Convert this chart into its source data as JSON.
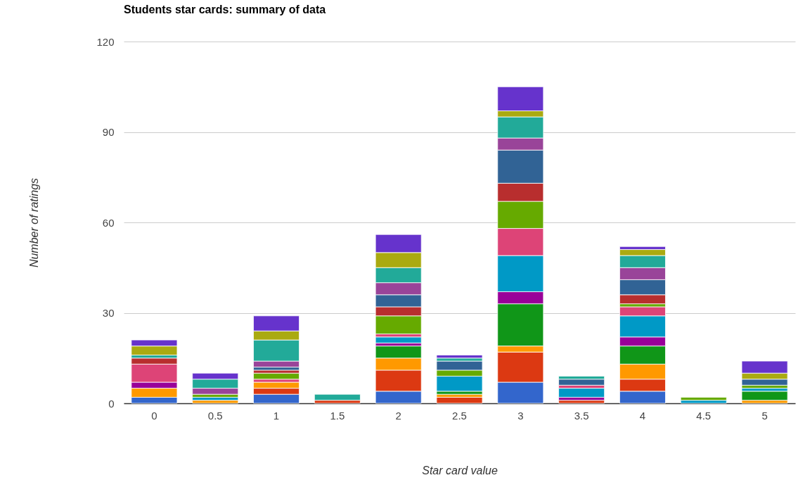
{
  "chart_data": {
    "type": "bar",
    "stacked": true,
    "title": "Students star cards: summary of data",
    "xlabel": "Star card value",
    "ylabel": "Number of ratings",
    "categories": [
      "0",
      "0.5",
      "1",
      "1.5",
      "2",
      "2.5",
      "3",
      "3.5",
      "4",
      "4.5",
      "5"
    ],
    "ylim": [
      0,
      120
    ],
    "yticks": [
      0,
      30,
      60,
      90,
      120
    ],
    "grid": "y",
    "legend": false,
    "series": [
      {
        "color": "#3366cc",
        "values": [
          2,
          null,
          3,
          null,
          4,
          null,
          7,
          null,
          4,
          null,
          null
        ]
      },
      {
        "color": "#dc3912",
        "values": [
          null,
          null,
          2,
          1,
          7,
          2,
          10,
          1,
          4,
          null,
          null
        ]
      },
      {
        "color": "#ff9900",
        "values": [
          3,
          1,
          2,
          null,
          4,
          1,
          2,
          null,
          5,
          null,
          1
        ]
      },
      {
        "color": "#109618",
        "values": [
          null,
          null,
          null,
          null,
          4,
          1,
          14,
          null,
          6,
          null,
          3
        ]
      },
      {
        "color": "#990099",
        "values": [
          2,
          null,
          null,
          null,
          1,
          null,
          4,
          1,
          3,
          null,
          null
        ]
      },
      {
        "color": "#0099c6",
        "values": [
          null,
          1,
          null,
          null,
          2,
          5,
          12,
          3,
          7,
          1,
          1
        ]
      },
      {
        "color": "#dd4477",
        "values": [
          6,
          null,
          1,
          null,
          1,
          null,
          9,
          1,
          3,
          null,
          null
        ]
      },
      {
        "color": "#66aa00",
        "values": [
          null,
          1,
          2,
          null,
          6,
          2,
          9,
          null,
          1,
          1,
          1
        ]
      },
      {
        "color": "#b82e2e",
        "values": [
          2,
          null,
          1,
          null,
          3,
          null,
          6,
          null,
          3,
          null,
          null
        ]
      },
      {
        "color": "#316395",
        "values": [
          null,
          null,
          1,
          null,
          4,
          3,
          11,
          2,
          5,
          null,
          2
        ]
      },
      {
        "color": "#994499",
        "values": [
          null,
          2,
          2,
          null,
          4,
          null,
          4,
          null,
          4,
          null,
          null
        ]
      },
      {
        "color": "#22aa99",
        "values": [
          1,
          3,
          7,
          2,
          5,
          1,
          7,
          1,
          4,
          null,
          null
        ]
      },
      {
        "color": "#aaaa11",
        "values": [
          3,
          null,
          3,
          null,
          5,
          null,
          2,
          null,
          2,
          null,
          2
        ]
      },
      {
        "color": "#6633cc",
        "values": [
          2,
          2,
          5,
          null,
          6,
          1,
          8,
          null,
          1,
          null,
          4
        ]
      }
    ]
  }
}
